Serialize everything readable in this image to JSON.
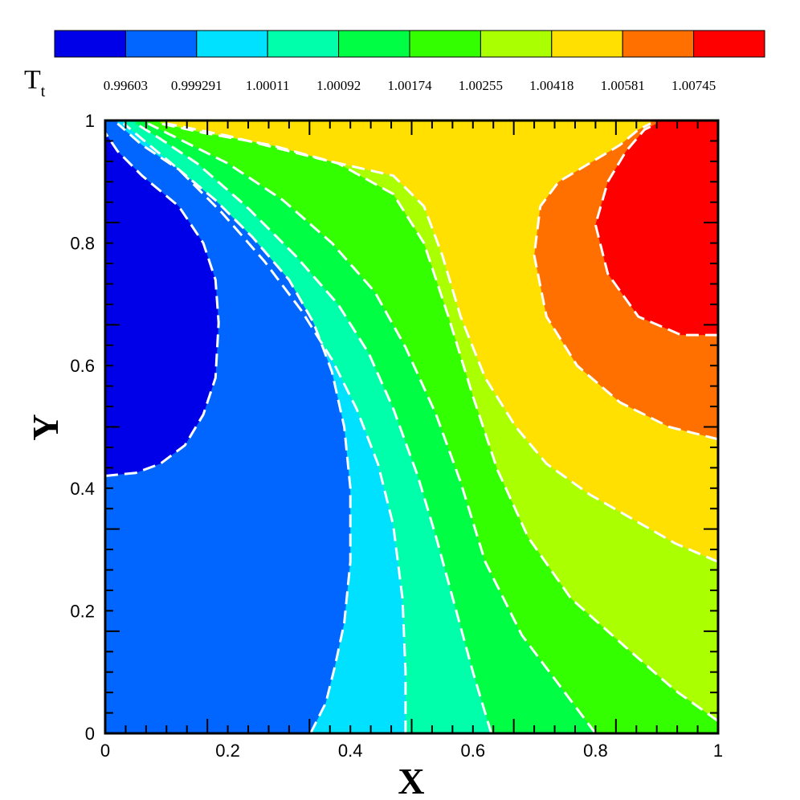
{
  "chart_data": {
    "type": "contour",
    "xlabel": "X",
    "ylabel": "Y",
    "xlim": [
      0,
      1
    ],
    "ylim": [
      0,
      1
    ],
    "xticks": [
      "0",
      "0.2",
      "0.4",
      "0.6",
      "0.8",
      "1"
    ],
    "yticks": [
      "0",
      "0.2",
      "0.4",
      "0.6",
      "0.8",
      "1"
    ],
    "legend": {
      "title": "T",
      "title_sub": "t",
      "placement": "top",
      "levels": [
        "0.99603",
        "0.999291",
        "1.00011",
        "1.00092",
        "1.00174",
        "1.00255",
        "1.00418",
        "1.00581",
        "1.00745"
      ],
      "colors": [
        "#0000e8",
        "#0066ff",
        "#00e0ff",
        "#00ffaa",
        "#00ff44",
        "#33ff00",
        "#aaff00",
        "#ffe000",
        "#ff7000",
        "#ff0000"
      ]
    },
    "contour_line_style": "white dashed",
    "contours": [
      {
        "band": 0,
        "color": "#0000e8",
        "x": [
          0,
          0.05,
          0.09,
          0.13,
          0.16,
          0.18,
          0.185,
          0.18,
          0.16,
          0.12,
          0.06,
          0.02,
          0
        ],
        "y": [
          0.42,
          0.425,
          0.44,
          0.47,
          0.52,
          0.58,
          0.67,
          0.74,
          0.8,
          0.86,
          0.91,
          0.95,
          0.98
        ]
      },
      {
        "band": 1,
        "color": "#0066ff",
        "x": [
          0.335,
          0.36,
          0.375,
          0.39,
          0.4,
          0.4,
          0.39,
          0.37,
          0.34,
          0.3,
          0.24,
          0.18,
          0.12,
          0.06,
          0.02
        ],
        "y": [
          0,
          0.05,
          0.11,
          0.18,
          0.28,
          0.4,
          0.5,
          0.59,
          0.67,
          0.74,
          0.81,
          0.87,
          0.92,
          0.96,
          0.995
        ]
      },
      {
        "band": 2,
        "color": "#00e0ff",
        "x": [
          0.49,
          0.49,
          0.485,
          0.47,
          0.445,
          0.41,
          0.37,
          0.32,
          0.26,
          0.19,
          0.12,
          0.06,
          0.03
        ],
        "y": [
          0,
          0.1,
          0.22,
          0.34,
          0.44,
          0.53,
          0.61,
          0.69,
          0.77,
          0.85,
          0.92,
          0.97,
          0.995
        ]
      },
      {
        "band": 3,
        "color": "#00ffaa",
        "x": [
          0.63,
          0.6,
          0.57,
          0.54,
          0.51,
          0.47,
          0.43,
          0.38,
          0.31,
          0.23,
          0.15,
          0.09,
          0.05
        ],
        "y": [
          0,
          0.1,
          0.21,
          0.32,
          0.42,
          0.53,
          0.62,
          0.7,
          0.78,
          0.86,
          0.93,
          0.97,
          0.995
        ]
      },
      {
        "band": 4,
        "color": "#00ff44",
        "x": [
          0.8,
          0.74,
          0.68,
          0.62,
          0.58,
          0.54,
          0.49,
          0.44,
          0.37,
          0.29,
          0.2,
          0.12,
          0.07
        ],
        "y": [
          0,
          0.08,
          0.16,
          0.28,
          0.41,
          0.52,
          0.63,
          0.72,
          0.8,
          0.87,
          0.93,
          0.97,
          0.995
        ]
      },
      {
        "band": 5,
        "color": "#33ff00",
        "x": [
          1.0,
          0.93,
          0.85,
          0.76,
          0.69,
          0.64,
          0.6,
          0.56,
          0.52,
          0.47,
          0.38,
          0.27,
          0.16,
          0.09
        ],
        "y": [
          0.02,
          0.07,
          0.14,
          0.22,
          0.32,
          0.43,
          0.55,
          0.68,
          0.8,
          0.88,
          0.93,
          0.96,
          0.98,
          0.995
        ]
      },
      {
        "band": 6,
        "color": "#aaff00",
        "x": [
          1.0,
          0.93,
          0.86,
          0.79,
          0.72,
          0.67,
          0.62,
          0.58,
          0.55,
          0.52,
          0.47,
          0.36,
          0.2,
          0.1
        ],
        "y": [
          0.28,
          0.31,
          0.35,
          0.39,
          0.44,
          0.5,
          0.58,
          0.68,
          0.78,
          0.86,
          0.91,
          0.935,
          0.975,
          0.995
        ]
      },
      {
        "band": 7,
        "color": "#ffe000",
        "x": [
          1.0,
          0.92,
          0.84,
          0.77,
          0.72,
          0.7,
          0.71,
          0.74,
          0.79,
          0.84,
          0.87,
          0.89
        ],
        "y": [
          0.48,
          0.5,
          0.54,
          0.6,
          0.68,
          0.78,
          0.86,
          0.9,
          0.93,
          0.96,
          0.985,
          0.995
        ]
      },
      {
        "band": 8,
        "color": "#ff7000",
        "x": [
          1.0,
          0.94,
          0.87,
          0.82,
          0.8,
          0.82,
          0.85,
          0.88,
          0.9
        ],
        "y": [
          0.65,
          0.65,
          0.68,
          0.75,
          0.83,
          0.9,
          0.95,
          0.985,
          0.995
        ]
      }
    ]
  }
}
